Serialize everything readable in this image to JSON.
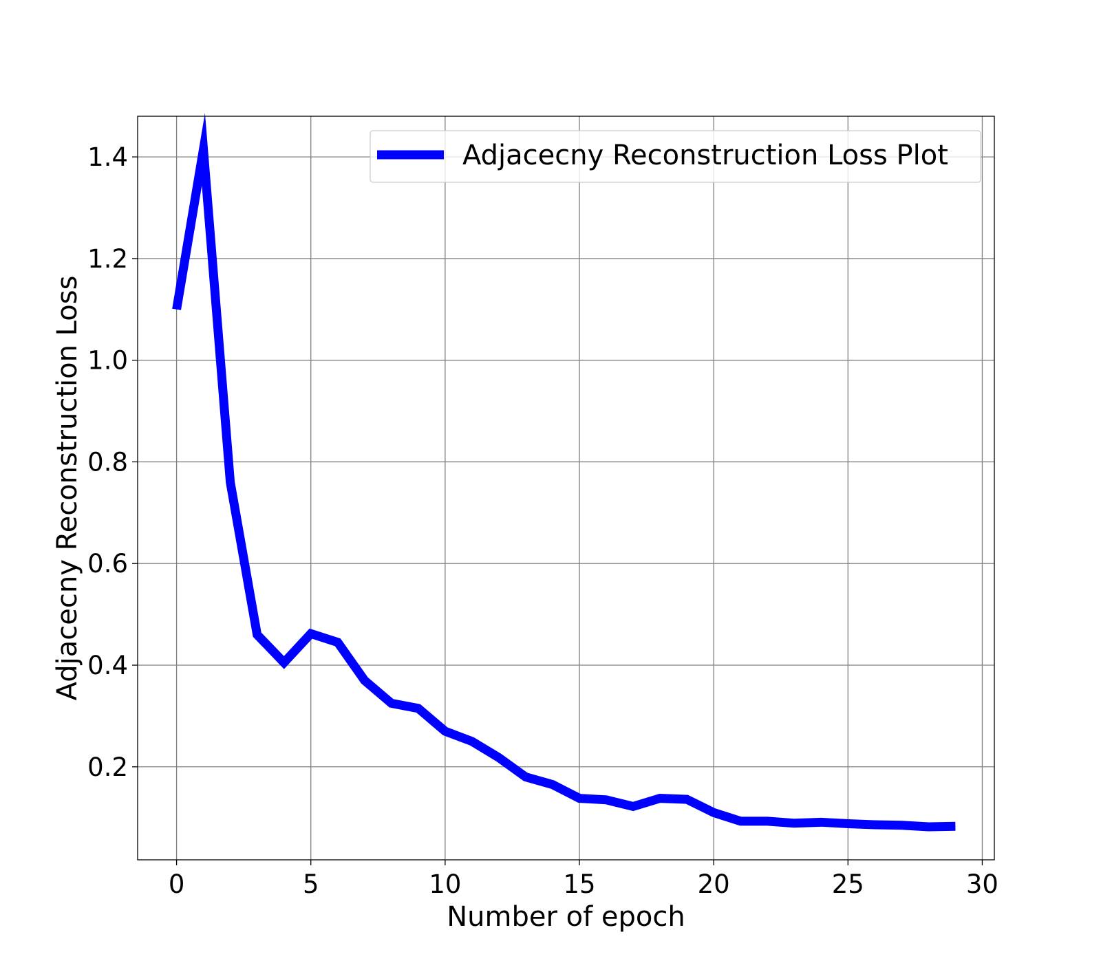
{
  "chart_data": {
    "type": "line",
    "title": "",
    "xlabel": "Number of epoch",
    "ylabel": "Adjacecny Reconstruction Loss",
    "xlim": [
      -1.45,
      30.45
    ],
    "ylim": [
      0.017,
      1.48
    ],
    "xticks": [
      0,
      5,
      10,
      15,
      20,
      25,
      30
    ],
    "yticks": [
      0.2,
      0.4,
      0.6,
      0.8,
      1.0,
      1.2,
      1.4
    ],
    "xtick_labels": [
      "0",
      "5",
      "10",
      "15",
      "20",
      "25",
      "30"
    ],
    "ytick_labels": [
      "0.2",
      "0.4",
      "0.6",
      "0.8",
      "1.0",
      "1.2",
      "1.4"
    ],
    "grid": true,
    "legend_position": "top-right",
    "series": [
      {
        "name": "Adjacecny Reconstruction Loss Plot",
        "color": "#0000ff",
        "x": [
          0,
          1,
          2,
          3,
          4,
          5,
          6,
          7,
          8,
          9,
          10,
          11,
          12,
          13,
          14,
          15,
          16,
          17,
          18,
          19,
          20,
          21,
          22,
          23,
          24,
          25,
          26,
          27,
          28,
          29
        ],
        "values": [
          1.1,
          1.415,
          0.76,
          0.46,
          0.405,
          0.462,
          0.445,
          0.37,
          0.325,
          0.315,
          0.27,
          0.25,
          0.218,
          0.18,
          0.165,
          0.138,
          0.135,
          0.122,
          0.138,
          0.136,
          0.11,
          0.093,
          0.093,
          0.089,
          0.091,
          0.088,
          0.086,
          0.085,
          0.082,
          0.083
        ]
      }
    ]
  }
}
